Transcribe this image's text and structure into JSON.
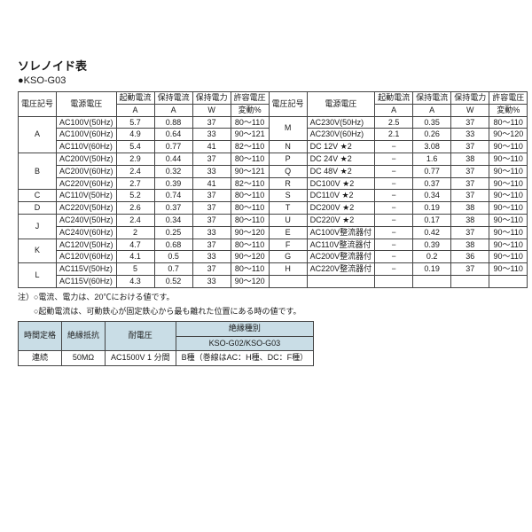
{
  "title": "ソレノイド表",
  "sub": "●KSO-G03",
  "cols": {
    "c1": "電圧記号",
    "c2": "電源電圧",
    "c3a": "起動電流",
    "c3b": "A",
    "c4a": "保持電流",
    "c4b": "A",
    "c5a": "保持電力",
    "c5b": "W",
    "c6a": "許容電圧",
    "c6b": "変動%"
  },
  "L": [
    {
      "g": "A",
      "r": [
        [
          "AC100V(50Hz)",
          "5.7",
          "0.88",
          "37",
          "80～110"
        ],
        [
          "AC100V(60Hz)",
          "4.9",
          "0.64",
          "33",
          "90～121"
        ],
        [
          "AC110V(60Hz)",
          "5.4",
          "0.77",
          "41",
          "82～110"
        ]
      ]
    },
    {
      "g": "B",
      "r": [
        [
          "AC200V(50Hz)",
          "2.9",
          "0.44",
          "37",
          "80～110"
        ],
        [
          "AC200V(60Hz)",
          "2.4",
          "0.32",
          "33",
          "90～121"
        ],
        [
          "AC220V(60Hz)",
          "2.7",
          "0.39",
          "41",
          "82～110"
        ]
      ]
    },
    {
      "g": "C",
      "r": [
        [
          "AC110V(50Hz)",
          "5.2",
          "0.74",
          "37",
          "80～110"
        ]
      ]
    },
    {
      "g": "D",
      "r": [
        [
          "AC220V(50Hz)",
          "2.6",
          "0.37",
          "37",
          "80～110"
        ]
      ]
    },
    {
      "g": "J",
      "r": [
        [
          "AC240V(50Hz)",
          "2.4",
          "0.34",
          "37",
          "80～110"
        ],
        [
          "AC240V(60Hz)",
          "2",
          "0.25",
          "33",
          "90～120"
        ]
      ]
    },
    {
      "g": "K",
      "r": [
        [
          "AC120V(50Hz)",
          "4.7",
          "0.68",
          "37",
          "80～110"
        ],
        [
          "AC120V(60Hz)",
          "4.1",
          "0.5",
          "33",
          "90～120"
        ]
      ]
    },
    {
      "g": "L",
      "r": [
        [
          "AC115V(50Hz)",
          "5",
          "0.7",
          "37",
          "80～110"
        ],
        [
          "AC115V(60Hz)",
          "4.3",
          "0.52",
          "33",
          "90～120"
        ]
      ]
    }
  ],
  "R": [
    {
      "g": "M",
      "r": [
        [
          "AC230V(50Hz)",
          "2.5",
          "0.35",
          "37",
          "80～110"
        ],
        [
          "AC230V(60Hz)",
          "2.1",
          "0.26",
          "33",
          "90～120"
        ]
      ]
    },
    {
      "g": "N",
      "r": [
        [
          "DC 12V ★2",
          "−",
          "3.08",
          "37",
          "90～110"
        ]
      ]
    },
    {
      "g": "P",
      "r": [
        [
          "DC 24V ★2",
          "−",
          "1.6",
          "38",
          "90～110"
        ]
      ]
    },
    {
      "g": "Q",
      "r": [
        [
          "DC 48V ★2",
          "−",
          "0.77",
          "37",
          "90～110"
        ]
      ]
    },
    {
      "g": "R",
      "r": [
        [
          "DC100V ★2",
          "−",
          "0.37",
          "37",
          "90～110"
        ]
      ]
    },
    {
      "g": "S",
      "r": [
        [
          "DC110V ★2",
          "−",
          "0.34",
          "37",
          "90～110"
        ]
      ]
    },
    {
      "g": "T",
      "r": [
        [
          "DC200V ★2",
          "−",
          "0.19",
          "38",
          "90～110"
        ]
      ]
    },
    {
      "g": "U",
      "r": [
        [
          "DC220V ★2",
          "−",
          "0.17",
          "38",
          "90～110"
        ]
      ]
    },
    {
      "g": "E",
      "r": [
        [
          "AC100V整流器付",
          "−",
          "0.42",
          "37",
          "90～110"
        ]
      ]
    },
    {
      "g": "F",
      "r": [
        [
          "AC110V整流器付",
          "−",
          "0.39",
          "38",
          "90～110"
        ]
      ]
    },
    {
      "g": "G",
      "r": [
        [
          "AC200V整流器付",
          "−",
          "0.2",
          "36",
          "90～110"
        ]
      ]
    },
    {
      "g": "H",
      "r": [
        [
          "AC220V整流器付",
          "−",
          "0.19",
          "37",
          "90～110"
        ]
      ]
    }
  ],
  "notes": [
    "注）○電流、電力は、20℃における値です。",
    "　　○起動電流は、可動鉄心が固定鉄心から最も離れた位置にある時の値です。"
  ],
  "t2h": {
    "a": "時間定格",
    "b": "絶縁抵抗",
    "c": "耐電圧",
    "d": "絶縁種別",
    "e": "KSO-G02/KSO-G03"
  },
  "t2r": {
    "a": "連続",
    "b": "50MΩ",
    "c": "AC1500V 1 分間",
    "d": "B種（巻線はAC：H種、DC：F種）"
  }
}
